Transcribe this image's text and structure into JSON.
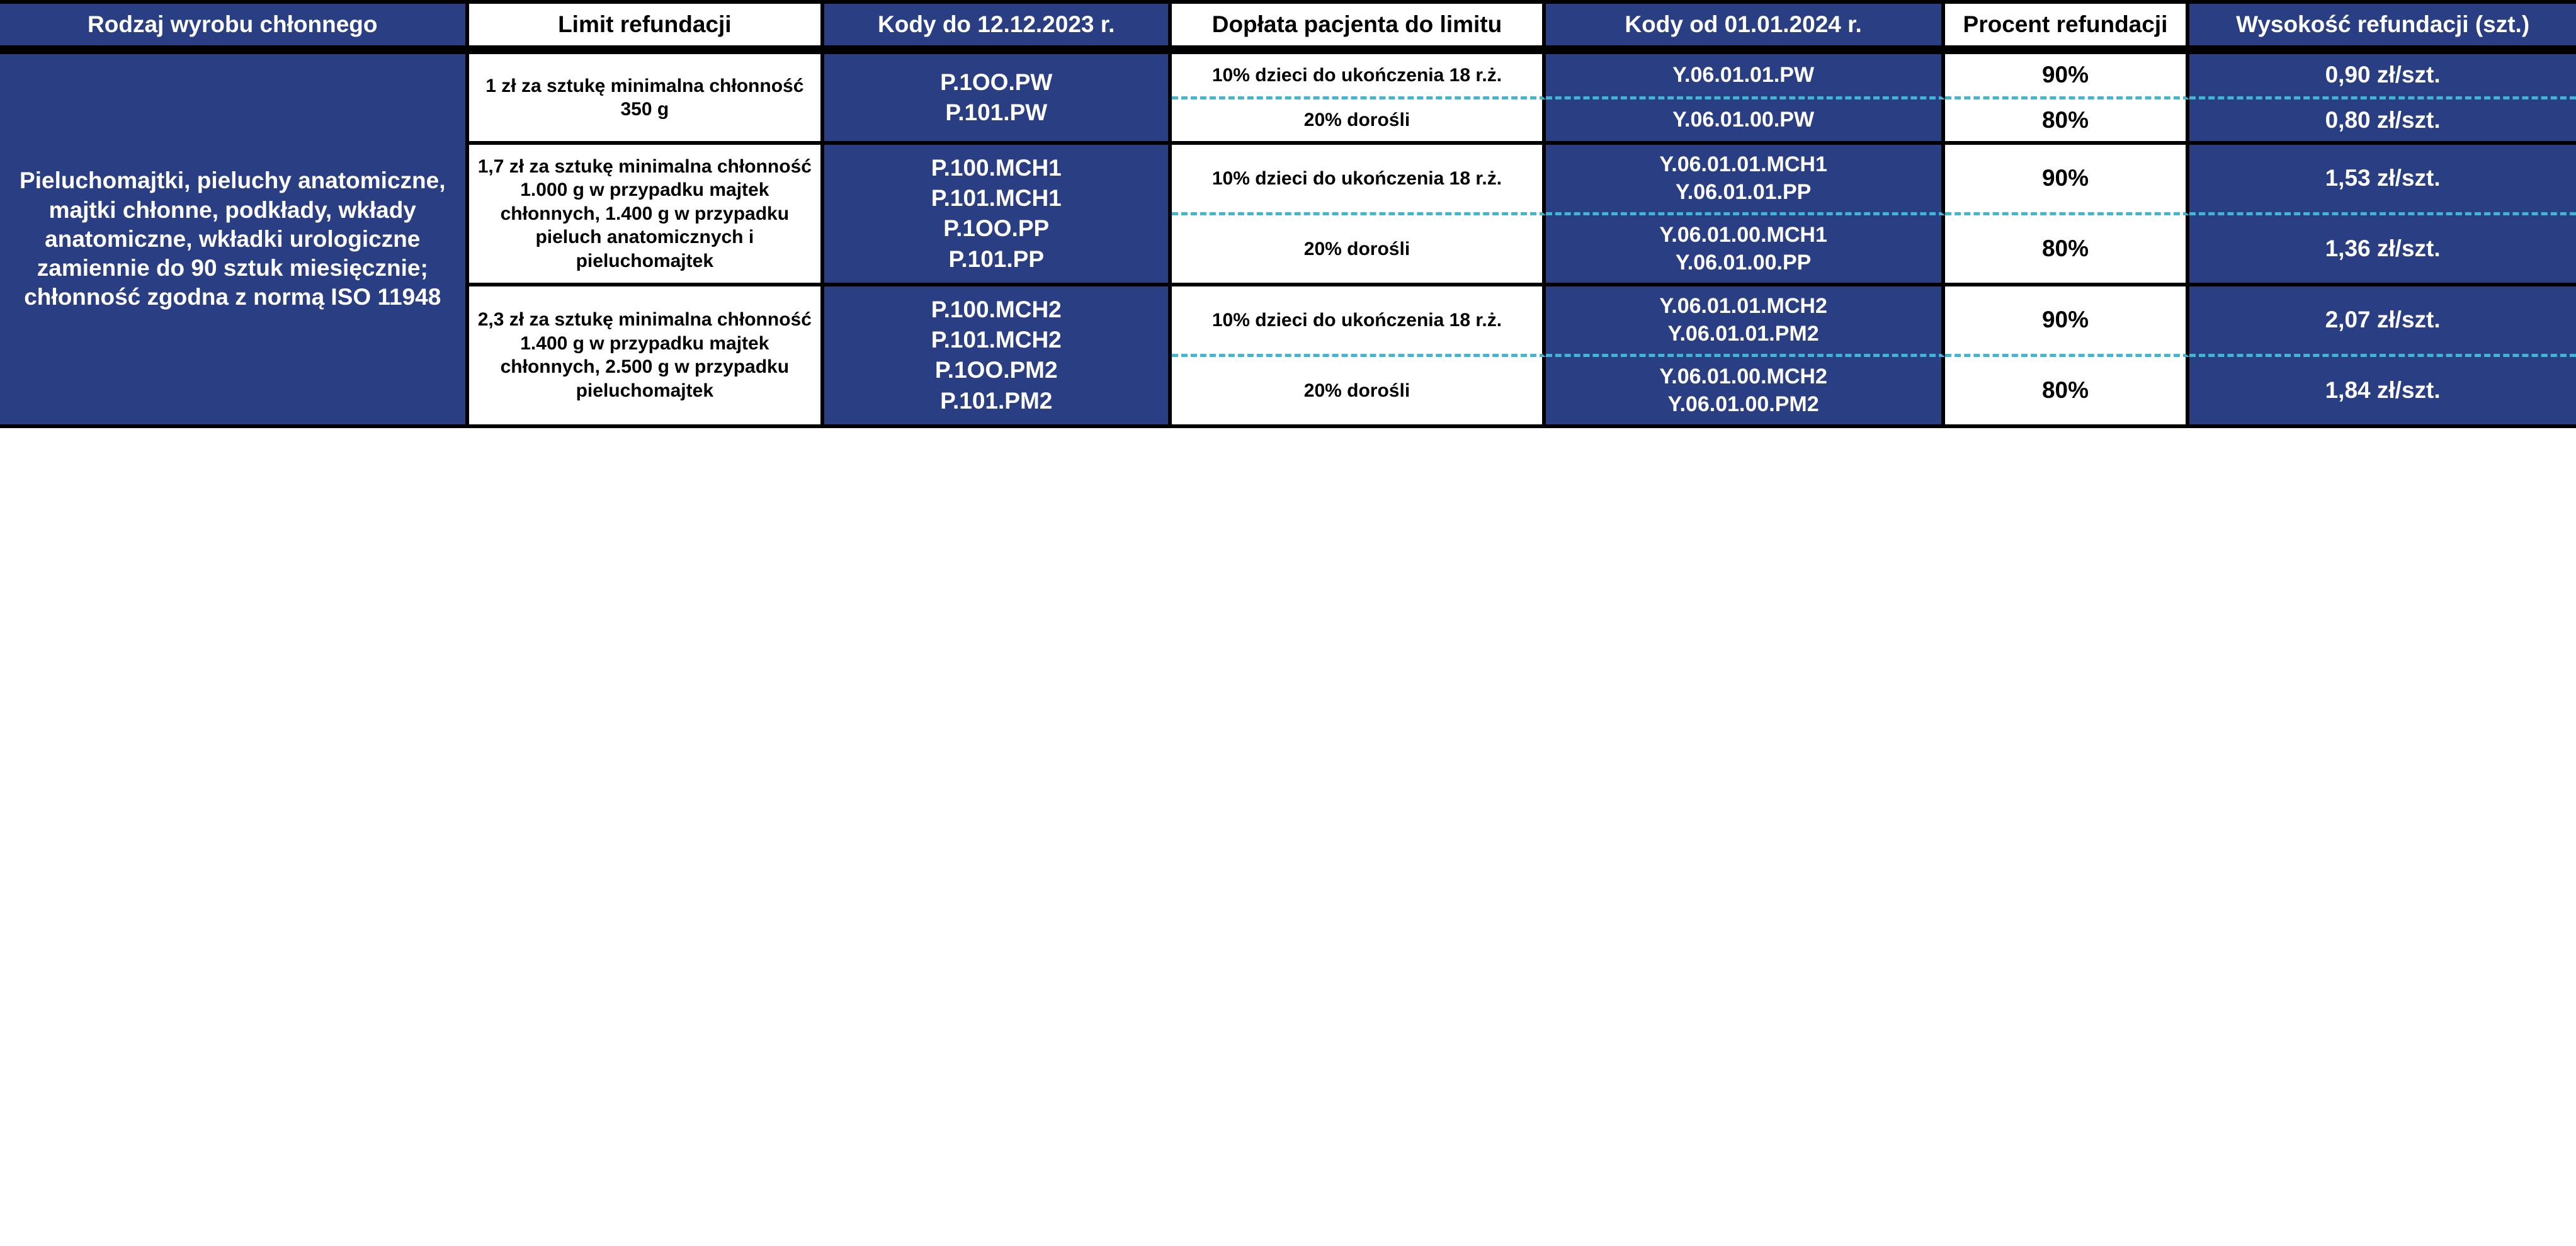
{
  "colors": {
    "blue_bg": "#2a3e83",
    "white_bg": "#ffffff",
    "text_on_blue": "#ffffff",
    "text_on_white": "#000000",
    "dash_border": "#3fb6d3",
    "solid_border": "#000000"
  },
  "headers": {
    "c1": "Rodzaj wyrobu chłonnego",
    "c2": "Limit refundacji",
    "c3": "Kody do 12.12.2023 r.",
    "c4": "Dopłata pacjenta do limitu",
    "c5": "Kody od 01.01.2024 r.",
    "c6": "Procent refundacji",
    "c7": "Wysokość refundacji (szt.)"
  },
  "category": "Pieluchomajtki, pieluchy anatomiczne, majtki chłonne, podkłady, wkłady anatomiczne, wkładki urologiczne zamiennie do 90 sztuk miesięcznie; chłonność zgodna z normą ISO 11948",
  "groups": [
    {
      "limit": "1 zł za sztukę minimalna chłonność 350 g",
      "codes_old": [
        "P.1OO.PW",
        "P.101.PW"
      ],
      "rows": [
        {
          "doplata": "10% dzieci do ukończenia 18 r.ż.",
          "codes_new": [
            "Y.06.01.01.PW"
          ],
          "procent": "90%",
          "wysokosc": "0,90 zł/szt."
        },
        {
          "doplata": "20% dorośli",
          "codes_new": [
            "Y.06.01.00.PW"
          ],
          "procent": "80%",
          "wysokosc": "0,80 zł/szt."
        }
      ]
    },
    {
      "limit": "1,7 zł za sztukę minimalna chłonność 1.000 g w przypadku majtek chłonnych, 1.400 g w przypadku pieluch anatomicznych i pieluchomajtek",
      "codes_old": [
        "P.100.MCH1",
        "P.101.MCH1",
        "P.1OO.PP",
        "P.101.PP"
      ],
      "rows": [
        {
          "doplata": "10% dzieci do ukończenia 18 r.ż.",
          "codes_new": [
            "Y.06.01.01.MCH1",
            "Y.06.01.01.PP"
          ],
          "procent": "90%",
          "wysokosc": "1,53 zł/szt."
        },
        {
          "doplata": "20% dorośli",
          "codes_new": [
            "Y.06.01.00.MCH1",
            "Y.06.01.00.PP"
          ],
          "procent": "80%",
          "wysokosc": "1,36 zł/szt."
        }
      ]
    },
    {
      "limit": "2,3 zł za sztukę minimalna chłonność 1.400 g w przypadku majtek chłonnych, 2.500 g w przypadku pieluchomajtek",
      "codes_old": [
        "P.100.MCH2",
        "P.101.MCH2",
        "P.1OO.PM2",
        "P.101.PM2"
      ],
      "rows": [
        {
          "doplata": "10% dzieci do ukończenia 18 r.ż.",
          "codes_new": [
            "Y.06.01.01.MCH2",
            "Y.06.01.01.PM2"
          ],
          "procent": "90%",
          "wysokosc": "2,07 zł/szt."
        },
        {
          "doplata": "20% dorośli",
          "codes_new": [
            "Y.06.01.00.MCH2",
            "Y.06.01.00.PM2"
          ],
          "procent": "80%",
          "wysokosc": "1,84 zł/szt."
        }
      ]
    }
  ]
}
